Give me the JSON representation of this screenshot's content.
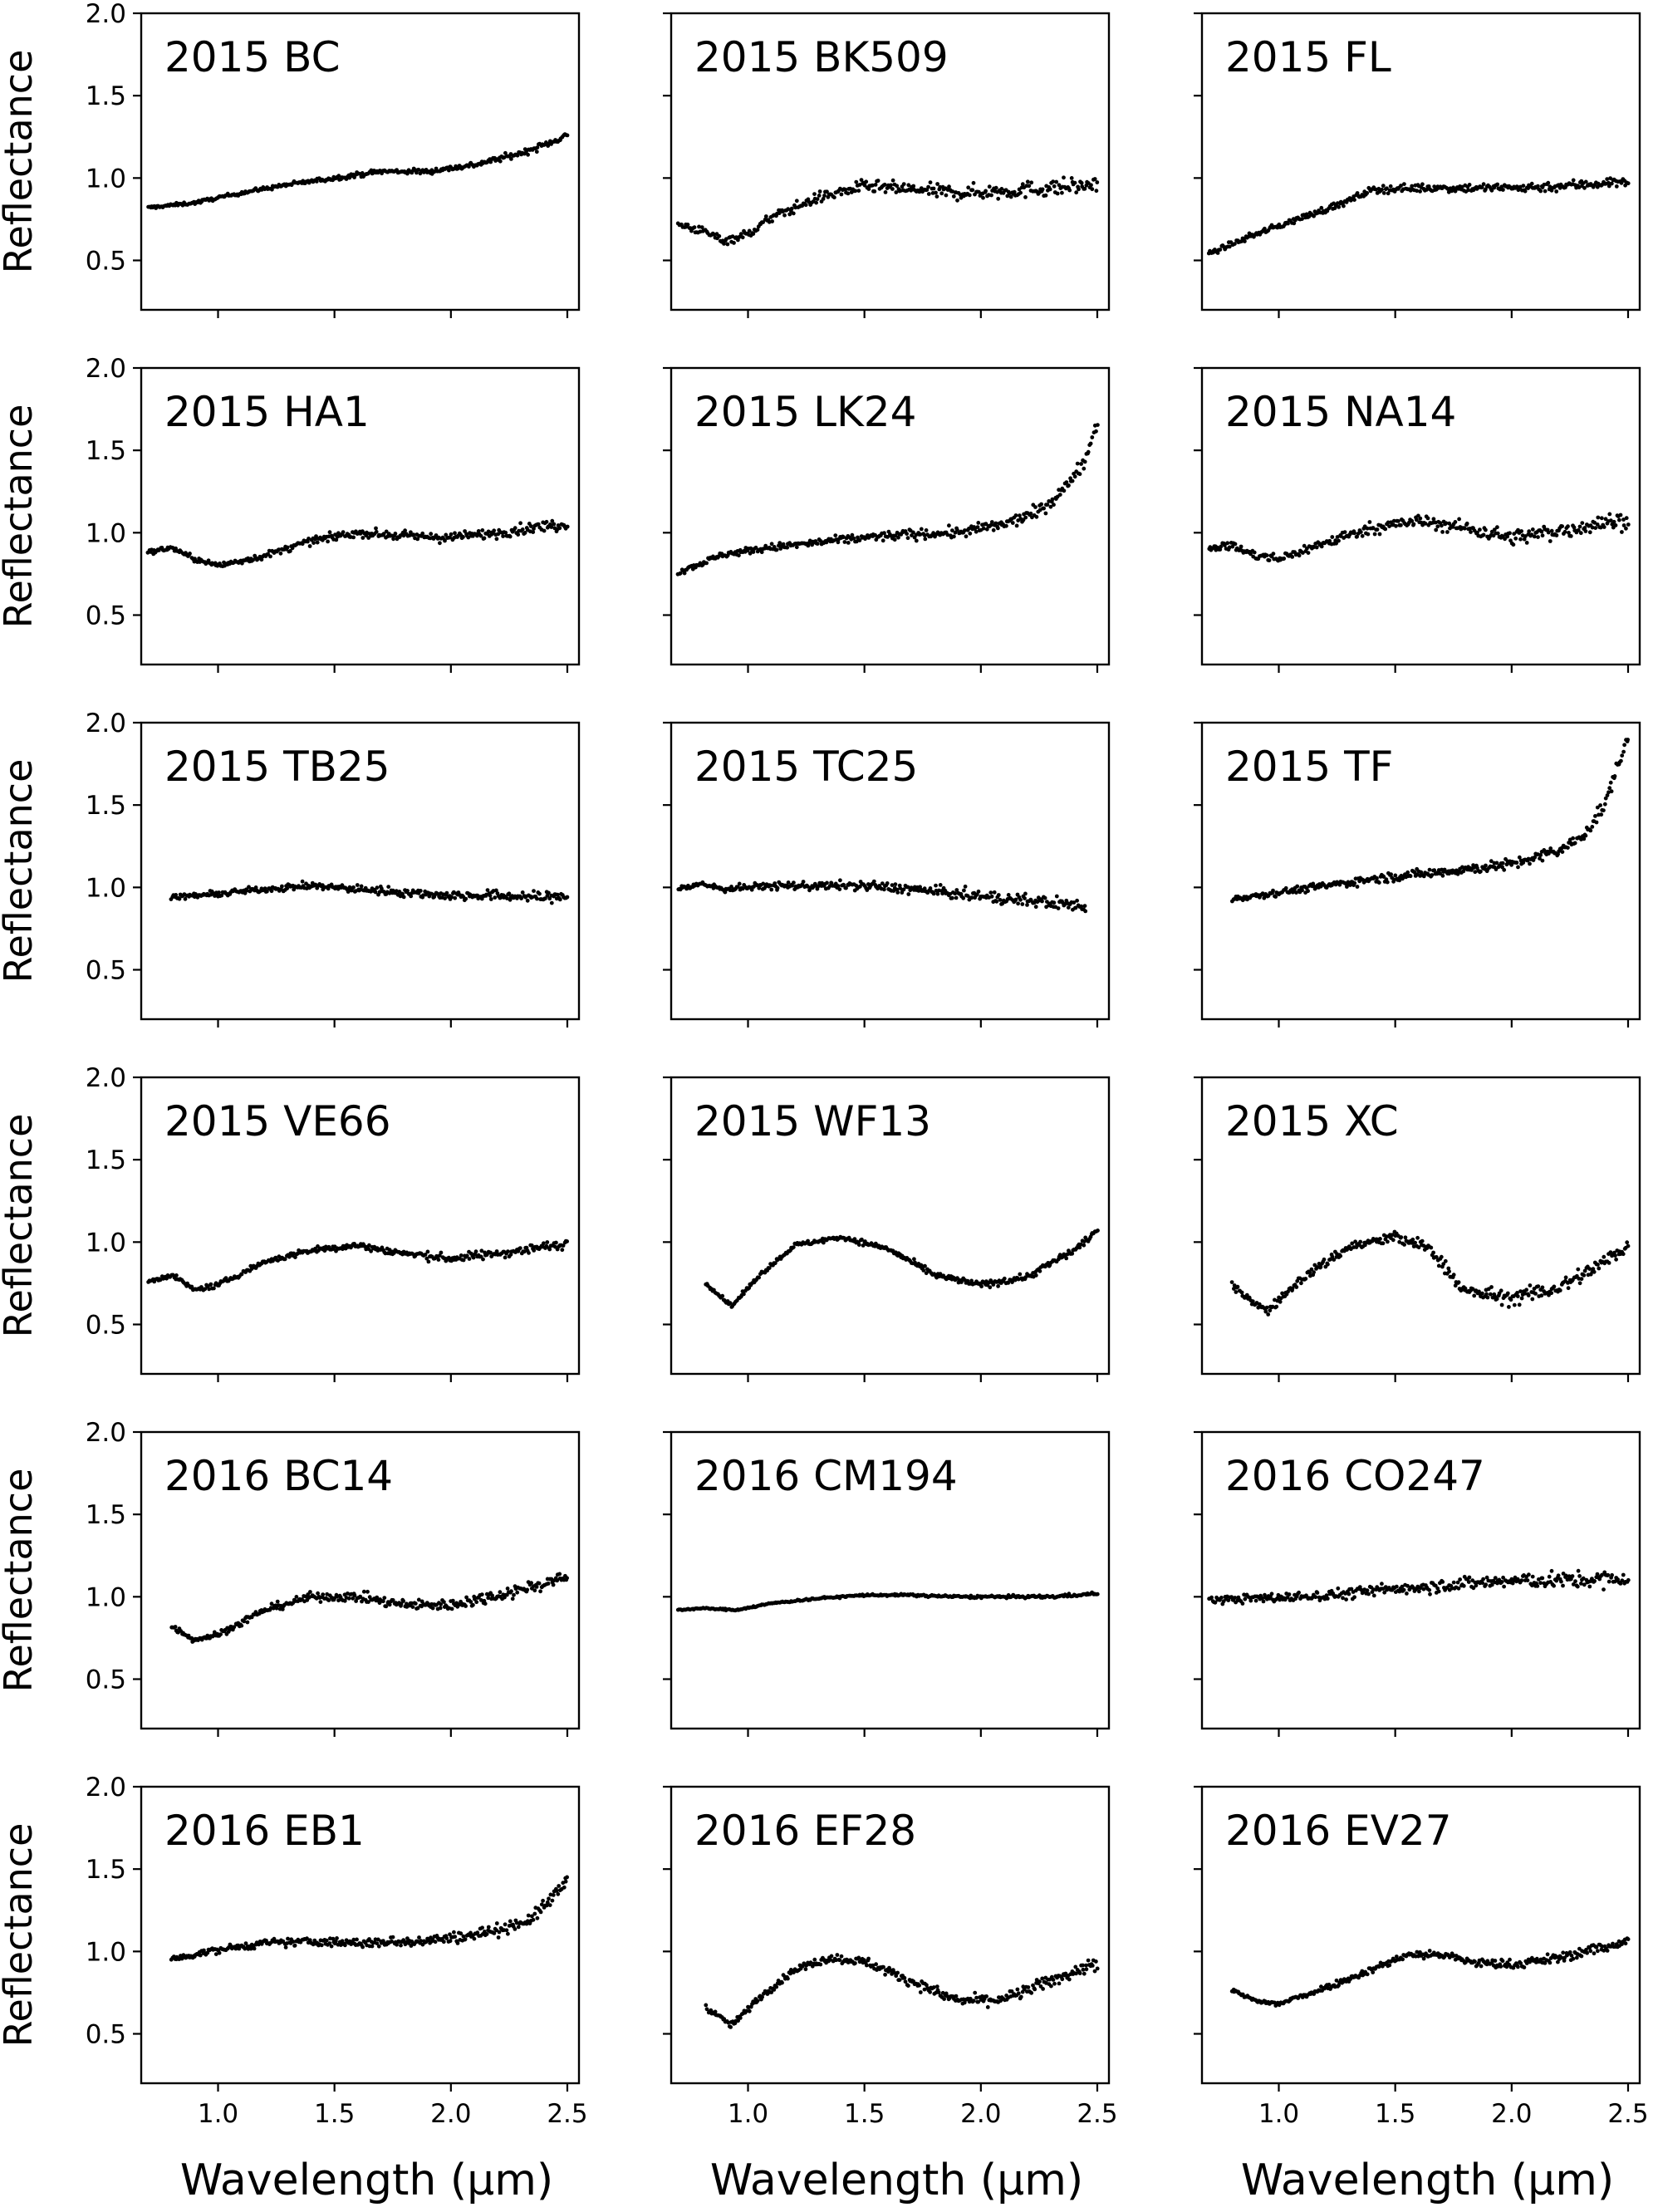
{
  "chart_data": {
    "type": "scatter",
    "layout": "6x3 grid of panels",
    "xlabel": "Wavelength (μm)",
    "ylabel": "Reflectance",
    "xlim": [
      0.67,
      2.55
    ],
    "ylim": [
      0.2,
      2.0
    ],
    "xticks": [
      1.0,
      1.5,
      2.0,
      2.5
    ],
    "xtick_labels": [
      "1.0",
      "1.5",
      "2.0",
      "2.5"
    ],
    "yticks": [
      0.5,
      1.0,
      1.5,
      2.0
    ],
    "ytick_labels": [
      "0.5",
      "1.0",
      "1.5",
      "2.0"
    ],
    "marker_color": "#000000",
    "panels": [
      {
        "title": "2015 BC",
        "x_range": [
          0.7,
          2.5
        ],
        "scatter": 0.015,
        "curve": [
          [
            0.7,
            0.82
          ],
          [
            0.9,
            0.85
          ],
          [
            1.1,
            0.91
          ],
          [
            1.3,
            0.96
          ],
          [
            1.5,
            1.0
          ],
          [
            1.7,
            1.04
          ],
          [
            1.9,
            1.04
          ],
          [
            2.1,
            1.08
          ],
          [
            2.3,
            1.15
          ],
          [
            2.4,
            1.2
          ],
          [
            2.5,
            1.26
          ]
        ]
      },
      {
        "title": "2015 BK509",
        "x_range": [
          0.7,
          2.5
        ],
        "scatter": 0.04,
        "curve": [
          [
            0.7,
            0.72
          ],
          [
            0.8,
            0.68
          ],
          [
            0.9,
            0.62
          ],
          [
            1.0,
            0.66
          ],
          [
            1.1,
            0.76
          ],
          [
            1.3,
            0.88
          ],
          [
            1.5,
            0.95
          ],
          [
            1.7,
            0.93
          ],
          [
            1.9,
            0.91
          ],
          [
            2.1,
            0.92
          ],
          [
            2.3,
            0.94
          ],
          [
            2.5,
            0.96
          ]
        ]
      },
      {
        "title": "2015 FL",
        "x_range": [
          0.7,
          2.5
        ],
        "scatter": 0.025,
        "curve": [
          [
            0.7,
            0.54
          ],
          [
            0.9,
            0.66
          ],
          [
            1.1,
            0.76
          ],
          [
            1.3,
            0.86
          ],
          [
            1.4,
            0.93
          ],
          [
            1.6,
            0.94
          ],
          [
            1.8,
            0.94
          ],
          [
            2.0,
            0.94
          ],
          [
            2.2,
            0.95
          ],
          [
            2.4,
            0.97
          ],
          [
            2.5,
            0.98
          ]
        ]
      },
      {
        "title": "2015 HA1",
        "x_range": [
          0.7,
          2.5
        ],
        "scatter": 0.025,
        "curve": [
          [
            0.7,
            0.88
          ],
          [
            0.8,
            0.91
          ],
          [
            0.9,
            0.84
          ],
          [
            1.0,
            0.8
          ],
          [
            1.2,
            0.86
          ],
          [
            1.4,
            0.95
          ],
          [
            1.6,
            1.0
          ],
          [
            1.8,
            0.98
          ],
          [
            2.0,
            0.97
          ],
          [
            2.2,
            1.0
          ],
          [
            2.4,
            1.04
          ],
          [
            2.5,
            1.05
          ]
        ]
      },
      {
        "title": "2015 LK24",
        "x_range": [
          0.7,
          2.5
        ],
        "scatter": 0.03,
        "curve": [
          [
            0.7,
            0.76
          ],
          [
            0.9,
            0.87
          ],
          [
            1.1,
            0.91
          ],
          [
            1.3,
            0.94
          ],
          [
            1.5,
            0.97
          ],
          [
            1.7,
            0.99
          ],
          [
            1.9,
            1.0
          ],
          [
            2.1,
            1.05
          ],
          [
            2.25,
            1.13
          ],
          [
            2.35,
            1.25
          ],
          [
            2.45,
            1.45
          ],
          [
            2.5,
            1.68
          ]
        ]
      },
      {
        "title": "2015 NA14",
        "x_range": [
          0.7,
          2.5
        ],
        "scatter": 0.04,
        "curve": [
          [
            0.7,
            0.91
          ],
          [
            0.8,
            0.92
          ],
          [
            0.9,
            0.86
          ],
          [
            1.0,
            0.84
          ],
          [
            1.2,
            0.94
          ],
          [
            1.4,
            1.03
          ],
          [
            1.6,
            1.07
          ],
          [
            1.8,
            1.03
          ],
          [
            2.0,
            0.97
          ],
          [
            2.2,
            1.01
          ],
          [
            2.4,
            1.06
          ],
          [
            2.5,
            1.08
          ]
        ]
      },
      {
        "title": "2015 TB25",
        "x_range": [
          0.8,
          2.5
        ],
        "scatter": 0.025,
        "curve": [
          [
            0.8,
            0.94
          ],
          [
            1.0,
            0.96
          ],
          [
            1.2,
            0.99
          ],
          [
            1.4,
            1.01
          ],
          [
            1.6,
            0.99
          ],
          [
            1.8,
            0.97
          ],
          [
            2.0,
            0.95
          ],
          [
            2.2,
            0.95
          ],
          [
            2.4,
            0.94
          ],
          [
            2.5,
            0.95
          ]
        ]
      },
      {
        "title": "2015 TC25",
        "x_range": [
          0.7,
          2.45
        ],
        "scatter": 0.03,
        "curve": [
          [
            0.7,
            0.99
          ],
          [
            0.8,
            1.02
          ],
          [
            0.9,
            0.99
          ],
          [
            1.1,
            1.01
          ],
          [
            1.3,
            1.01
          ],
          [
            1.5,
            1.01
          ],
          [
            1.7,
            0.99
          ],
          [
            1.9,
            0.96
          ],
          [
            2.1,
            0.93
          ],
          [
            2.3,
            0.91
          ],
          [
            2.45,
            0.88
          ]
        ]
      },
      {
        "title": "2015 TF",
        "x_range": [
          0.8,
          2.5
        ],
        "scatter": 0.03,
        "curve": [
          [
            0.8,
            0.93
          ],
          [
            1.0,
            0.97
          ],
          [
            1.2,
            1.01
          ],
          [
            1.4,
            1.05
          ],
          [
            1.6,
            1.08
          ],
          [
            1.8,
            1.11
          ],
          [
            2.0,
            1.14
          ],
          [
            2.2,
            1.22
          ],
          [
            2.3,
            1.3
          ],
          [
            2.4,
            1.5
          ],
          [
            2.45,
            1.72
          ],
          [
            2.5,
            1.9
          ]
        ]
      },
      {
        "title": "2015 VE66",
        "x_range": [
          0.7,
          2.5
        ],
        "scatter": 0.022,
        "curve": [
          [
            0.7,
            0.76
          ],
          [
            0.8,
            0.8
          ],
          [
            0.9,
            0.71
          ],
          [
            1.0,
            0.74
          ],
          [
            1.2,
            0.88
          ],
          [
            1.4,
            0.95
          ],
          [
            1.6,
            0.98
          ],
          [
            1.8,
            0.93
          ],
          [
            2.0,
            0.9
          ],
          [
            2.2,
            0.93
          ],
          [
            2.4,
            0.97
          ],
          [
            2.5,
            0.99
          ]
        ]
      },
      {
        "title": "2015 WF13",
        "x_range": [
          0.82,
          2.5
        ],
        "scatter": 0.018,
        "curve": [
          [
            0.82,
            0.75
          ],
          [
            0.93,
            0.61
          ],
          [
            1.05,
            0.8
          ],
          [
            1.2,
            0.98
          ],
          [
            1.4,
            1.03
          ],
          [
            1.6,
            0.96
          ],
          [
            1.8,
            0.8
          ],
          [
            2.0,
            0.74
          ],
          [
            2.2,
            0.79
          ],
          [
            2.4,
            0.95
          ],
          [
            2.5,
            1.07
          ]
        ]
      },
      {
        "title": "2015 XC",
        "x_range": [
          0.8,
          2.5
        ],
        "scatter": 0.04,
        "curve": [
          [
            0.8,
            0.73
          ],
          [
            0.95,
            0.58
          ],
          [
            1.1,
            0.78
          ],
          [
            1.3,
            0.97
          ],
          [
            1.5,
            1.03
          ],
          [
            1.65,
            0.96
          ],
          [
            1.8,
            0.7
          ],
          [
            2.0,
            0.66
          ],
          [
            2.2,
            0.72
          ],
          [
            2.4,
            0.88
          ],
          [
            2.5,
            0.98
          ]
        ]
      },
      {
        "title": "2016 BC14",
        "x_range": [
          0.8,
          2.5
        ],
        "scatter": 0.03,
        "curve": [
          [
            0.8,
            0.82
          ],
          [
            0.9,
            0.74
          ],
          [
            1.0,
            0.77
          ],
          [
            1.2,
            0.92
          ],
          [
            1.4,
            1.0
          ],
          [
            1.6,
            1.0
          ],
          [
            1.8,
            0.95
          ],
          [
            2.0,
            0.95
          ],
          [
            2.2,
            1.01
          ],
          [
            2.4,
            1.08
          ],
          [
            2.5,
            1.12
          ]
        ]
      },
      {
        "title": "2016 CM194",
        "x_range": [
          0.7,
          2.5
        ],
        "scatter": 0.007,
        "curve": [
          [
            0.7,
            0.92
          ],
          [
            0.8,
            0.93
          ],
          [
            0.95,
            0.92
          ],
          [
            1.1,
            0.96
          ],
          [
            1.3,
            0.99
          ],
          [
            1.5,
            1.01
          ],
          [
            1.7,
            1.01
          ],
          [
            1.9,
            1.0
          ],
          [
            2.1,
            1.0
          ],
          [
            2.3,
            1.0
          ],
          [
            2.5,
            1.02
          ]
        ]
      },
      {
        "title": "2016 CO247",
        "x_range": [
          0.7,
          2.5
        ],
        "scatter": 0.04,
        "curve": [
          [
            0.7,
            0.98
          ],
          [
            0.9,
            0.99
          ],
          [
            1.1,
            1.0
          ],
          [
            1.3,
            1.02
          ],
          [
            1.5,
            1.05
          ],
          [
            1.7,
            1.07
          ],
          [
            1.9,
            1.09
          ],
          [
            2.1,
            1.1
          ],
          [
            2.3,
            1.1
          ],
          [
            2.5,
            1.11
          ]
        ]
      },
      {
        "title": "2016 EB1",
        "x_range": [
          0.8,
          2.5
        ],
        "scatter": 0.03,
        "curve": [
          [
            0.8,
            0.95
          ],
          [
            1.0,
            1.01
          ],
          [
            1.2,
            1.05
          ],
          [
            1.4,
            1.06
          ],
          [
            1.6,
            1.05
          ],
          [
            1.8,
            1.06
          ],
          [
            2.0,
            1.08
          ],
          [
            2.2,
            1.13
          ],
          [
            2.35,
            1.2
          ],
          [
            2.45,
            1.35
          ],
          [
            2.5,
            1.45
          ]
        ]
      },
      {
        "title": "2016 EF28",
        "x_range": [
          0.82,
          2.5
        ],
        "scatter": 0.03,
        "curve": [
          [
            0.82,
            0.66
          ],
          [
            0.93,
            0.55
          ],
          [
            1.05,
            0.72
          ],
          [
            1.2,
            0.89
          ],
          [
            1.35,
            0.96
          ],
          [
            1.5,
            0.94
          ],
          [
            1.7,
            0.82
          ],
          [
            1.9,
            0.7
          ],
          [
            2.1,
            0.71
          ],
          [
            2.3,
            0.82
          ],
          [
            2.5,
            0.93
          ]
        ]
      },
      {
        "title": "2016 EV27",
        "x_range": [
          0.8,
          2.5
        ],
        "scatter": 0.025,
        "curve": [
          [
            0.8,
            0.76
          ],
          [
            0.9,
            0.7
          ],
          [
            1.0,
            0.68
          ],
          [
            1.2,
            0.78
          ],
          [
            1.4,
            0.89
          ],
          [
            1.55,
            0.98
          ],
          [
            1.7,
            0.98
          ],
          [
            1.85,
            0.93
          ],
          [
            2.0,
            0.92
          ],
          [
            2.2,
            0.96
          ],
          [
            2.4,
            1.03
          ],
          [
            2.5,
            1.06
          ]
        ]
      }
    ]
  }
}
